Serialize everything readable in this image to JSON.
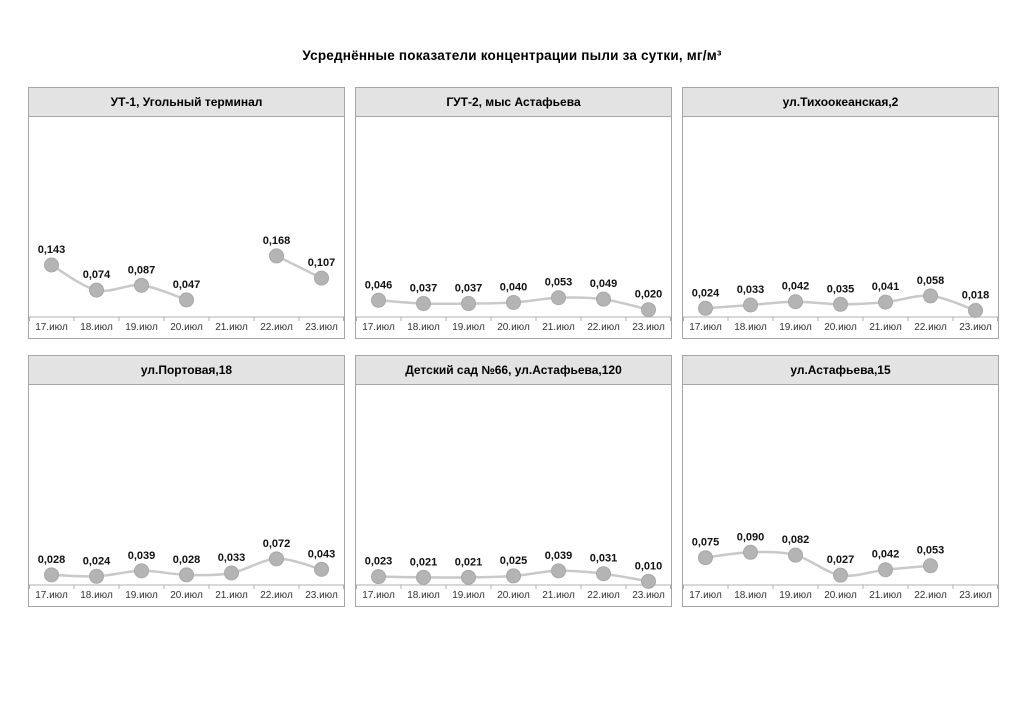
{
  "title": "Усреднённые показатели концентрации пыли за сутки, мг/м³",
  "colors": {
    "panel_border": "#a6a6a6",
    "header_bg": "#e3e3e3",
    "marker_fill": "#b4b4b4",
    "marker_stroke": "#a8a8a8",
    "line": "#c9c9c9",
    "axis": "#b0b0b0",
    "value_text": "#111111",
    "axis_text": "#333333"
  },
  "chart_data": [
    {
      "type": "line",
      "title": "УТ-1, Угольный терминал",
      "categories": [
        "17.июл",
        "18.июл",
        "19.июл",
        "20.июл",
        "21.июл",
        "22.июл",
        "23.июл"
      ],
      "values": [
        0.143,
        0.074,
        0.087,
        0.047,
        null,
        0.168,
        0.107
      ],
      "labels": [
        "0,143",
        "0,074",
        "0,087",
        "0,047",
        "",
        "0,168",
        "0,107"
      ],
      "xlabel": "",
      "ylabel": "",
      "ylim": [
        0,
        0.55
      ],
      "grid": false,
      "legend": "none"
    },
    {
      "type": "line",
      "title": "ГУТ-2, мыс Астафьева",
      "categories": [
        "17.июл",
        "18.июл",
        "19.июл",
        "20.июл",
        "21.июл",
        "22.июл",
        "23.июл"
      ],
      "values": [
        0.046,
        0.037,
        0.037,
        0.04,
        0.053,
        0.049,
        0.02
      ],
      "labels": [
        "0,046",
        "0,037",
        "0,037",
        "0,040",
        "0,053",
        "0,049",
        "0,020"
      ],
      "xlabel": "",
      "ylabel": "",
      "ylim": [
        0,
        0.55
      ],
      "grid": false,
      "legend": "none"
    },
    {
      "type": "line",
      "title": "ул.Тихоокеанская,2",
      "categories": [
        "17.июл",
        "18.июл",
        "19.июл",
        "20.июл",
        "21.июл",
        "22.июл",
        "23.июл"
      ],
      "values": [
        0.024,
        0.033,
        0.042,
        0.035,
        0.041,
        0.058,
        0.018
      ],
      "labels": [
        "0,024",
        "0,033",
        "0,042",
        "0,035",
        "0,041",
        "0,058",
        "0,018"
      ],
      "xlabel": "",
      "ylabel": "",
      "ylim": [
        0,
        0.55
      ],
      "grid": false,
      "legend": "none"
    },
    {
      "type": "line",
      "title": "ул.Портовая,18",
      "categories": [
        "17.июл",
        "18.июл",
        "19.июл",
        "20.июл",
        "21.июл",
        "22.июл",
        "23.июл"
      ],
      "values": [
        0.028,
        0.024,
        0.039,
        0.028,
        0.033,
        0.072,
        0.043
      ],
      "labels": [
        "0,028",
        "0,024",
        "0,039",
        "0,028",
        "0,033",
        "0,072",
        "0,043"
      ],
      "xlabel": "",
      "ylabel": "",
      "ylim": [
        0,
        0.55
      ],
      "grid": false,
      "legend": "none"
    },
    {
      "type": "line",
      "title": "Детский сад №66, ул.Астафьева,120",
      "categories": [
        "17.июл",
        "18.июл",
        "19.июл",
        "20.июл",
        "21.июл",
        "22.июл",
        "23.июл"
      ],
      "values": [
        0.023,
        0.021,
        0.021,
        0.025,
        0.039,
        0.031,
        0.01
      ],
      "labels": [
        "0,023",
        "0,021",
        "0,021",
        "0,025",
        "0,039",
        "0,031",
        "0,010"
      ],
      "xlabel": "",
      "ylabel": "",
      "ylim": [
        0,
        0.55
      ],
      "grid": false,
      "legend": "none"
    },
    {
      "type": "line",
      "title": "ул.Астафьева,15",
      "categories": [
        "17.июл",
        "18.июл",
        "19.июл",
        "20.июл",
        "21.июл",
        "22.июл",
        "23.июл"
      ],
      "values": [
        0.075,
        0.09,
        0.082,
        0.027,
        0.042,
        0.053,
        null
      ],
      "labels": [
        "0,075",
        "0,090",
        "0,082",
        "0,027",
        "0,042",
        "0,053",
        ""
      ],
      "xlabel": "",
      "ylabel": "",
      "ylim": [
        0,
        0.55
      ],
      "grid": false,
      "legend": "none"
    }
  ]
}
